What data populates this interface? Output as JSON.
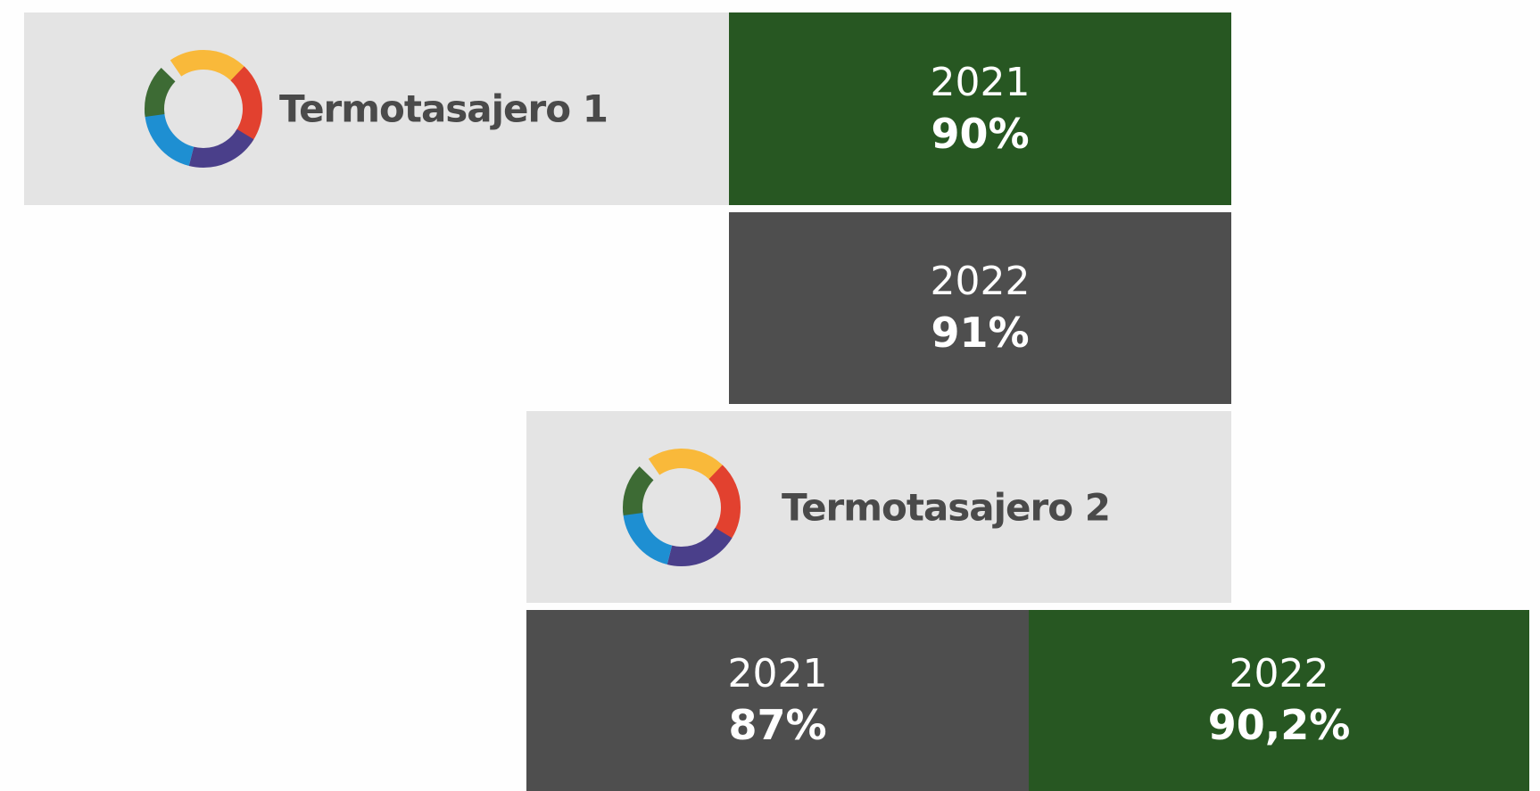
{
  "plants": [
    {
      "name": "Termotasajero 1",
      "stats": [
        {
          "year": "2021",
          "value": "90%"
        },
        {
          "year": "2022",
          "value": "91%"
        }
      ]
    },
    {
      "name": "Termotasajero 2",
      "stats": [
        {
          "year": "2021",
          "value": "87%"
        },
        {
          "year": "2022",
          "value": "90,2%"
        }
      ]
    }
  ]
}
